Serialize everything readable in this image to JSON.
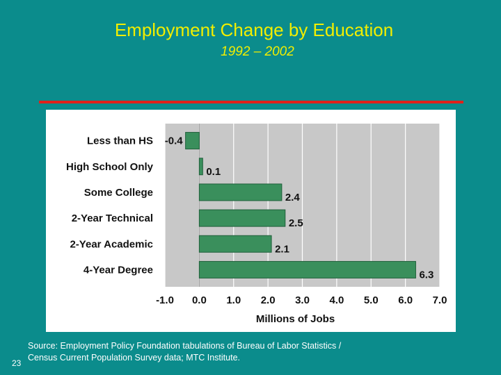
{
  "slide": {
    "title": "Employment Change by Education",
    "subtitle": "1992 – 2002",
    "source": "Source: Employment Policy Foundation tabulations of Bureau of Labor Statistics / Census Current Population Survey data; MTC Institute.",
    "slide_number": "23"
  },
  "colors": {
    "background": "#0b8c8c",
    "title": "#f2ee00",
    "rule": "#e0211b",
    "bar_fill": "#3a8f5c",
    "plot_bg": "#c8c8c8"
  },
  "chart_data": {
    "type": "bar",
    "orientation": "horizontal",
    "categories": [
      "Less than HS",
      "High School Only",
      "Some College",
      "2-Year Technical",
      "2-Year Academic",
      "4-Year Degree"
    ],
    "values": [
      -0.4,
      0.1,
      2.4,
      2.5,
      2.1,
      6.3
    ],
    "value_labels": [
      "-0.4",
      "0.1",
      "2.4",
      "2.5",
      "2.1",
      "6.3"
    ],
    "xlabel": "Millions of Jobs",
    "xlim": [
      -1.0,
      7.0
    ],
    "xticks": [
      "-1.0",
      "0.0",
      "1.0",
      "2.0",
      "3.0",
      "4.0",
      "5.0",
      "6.0",
      "7.0"
    ],
    "grid": true
  }
}
